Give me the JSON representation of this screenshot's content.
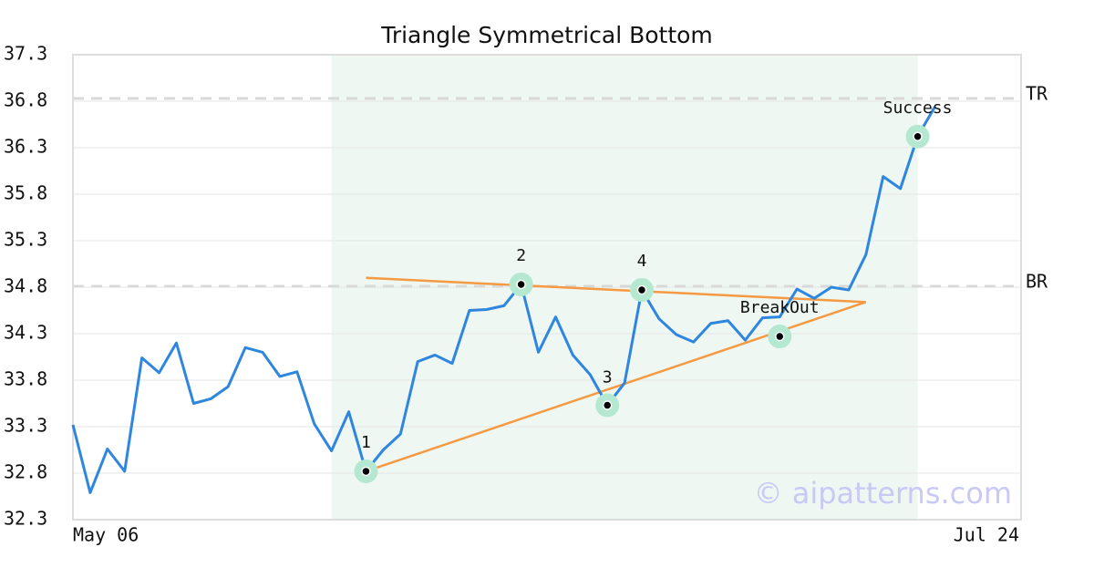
{
  "chart_data": {
    "type": "line",
    "title": "Triangle Symmetrical Bottom",
    "x_edge_labels": [
      "May 06",
      "Jul 24"
    ],
    "x": [
      0,
      1,
      2,
      3,
      4,
      5,
      6,
      7,
      8,
      9,
      10,
      11,
      12,
      13,
      14,
      15,
      16,
      17,
      18,
      19,
      20,
      21,
      22,
      23,
      24,
      25,
      26,
      27,
      28,
      29,
      30,
      31,
      32,
      33,
      34,
      35,
      36,
      37,
      38,
      39,
      40,
      41,
      42,
      43,
      44,
      45,
      46,
      47,
      48,
      49,
      50
    ],
    "xlim": [
      0,
      55
    ],
    "series": [
      {
        "color": "#2e86de",
        "values": [
          33.32,
          32.59,
          33.06,
          32.82,
          34.04,
          33.88,
          34.2,
          33.55,
          33.6,
          33.73,
          34.15,
          34.1,
          33.84,
          33.89,
          33.33,
          33.04,
          33.46,
          32.82,
          33.05,
          33.22,
          34.0,
          34.07,
          33.98,
          34.55,
          34.56,
          34.6,
          34.83,
          34.1,
          34.48,
          34.07,
          33.86,
          33.53,
          33.77,
          34.77,
          34.46,
          34.29,
          34.21,
          34.41,
          34.44,
          34.23,
          34.47,
          34.48,
          34.78,
          34.68,
          34.8,
          34.77,
          35.15,
          35.99,
          35.86,
          36.42,
          36.74
        ]
      }
    ],
    "ylim": [
      32.3,
      37.3
    ],
    "yticks": [
      32.3,
      32.8,
      33.3,
      33.8,
      34.3,
      34.8,
      35.3,
      35.8,
      36.3,
      36.8,
      37.3
    ],
    "grid": true,
    "pattern_zone": {
      "x": [
        15,
        49
      ],
      "color": "#eef7f2"
    },
    "levels": [
      {
        "label": "TR",
        "y": 36.83
      },
      {
        "label": "BR",
        "y": 34.81
      }
    ],
    "trend_lines": [
      {
        "color": "#f59a42",
        "x": [
          17,
          46
        ],
        "y": [
          34.9,
          34.64
        ]
      },
      {
        "color": "#f59a42",
        "x": [
          17,
          46
        ],
        "y": [
          32.82,
          34.64
        ]
      }
    ],
    "markers": [
      {
        "label": "1",
        "x": 17,
        "y": 32.82
      },
      {
        "label": "2",
        "x": 26,
        "y": 34.83
      },
      {
        "label": "3",
        "x": 31,
        "y": 33.53
      },
      {
        "label": "4",
        "x": 33,
        "y": 34.77
      },
      {
        "label": "BreakOut",
        "x": 41,
        "y": 34.27
      },
      {
        "label": "Success",
        "x": 49,
        "y": 36.42
      }
    ],
    "watermark": "© aipatterns.com"
  }
}
